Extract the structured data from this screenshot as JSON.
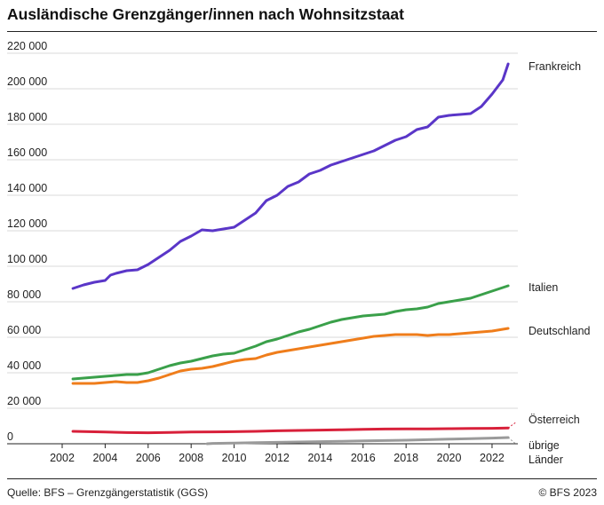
{
  "header": {
    "title": "Ausländische Grenzgänger/innen nach Wohnsitzstaat"
  },
  "footer": {
    "source": "Quelle: BFS – Grenzgängerstatistik (GGS)",
    "copyright": "© BFS 2023"
  },
  "colors": {
    "Frankreich": "#5a36c8",
    "Italien": "#3aa04a",
    "Deutschland": "#ef7d1b",
    "Österreich": "#d8203a",
    "übrige Länder": "#9a9a9a",
    "gridline": "#d9d9d9",
    "axis": "#222222"
  },
  "chart_data": {
    "type": "line",
    "title": "Ausländische Grenzgänger/innen nach Wohnsitzstaat",
    "xlabel": "",
    "ylabel": "",
    "xlim": [
      2002,
      2023.2
    ],
    "ylim": [
      0,
      220000
    ],
    "grid": true,
    "y_ticks": [
      0,
      20000,
      40000,
      60000,
      80000,
      100000,
      120000,
      140000,
      160000,
      180000,
      200000,
      220000
    ],
    "y_tick_labels": [
      "0",
      "20 000",
      "40 000",
      "60 000",
      "80 000",
      "100 000",
      "120 000",
      "140 000",
      "160 000",
      "180 000",
      "200 000",
      "220 000"
    ],
    "x_ticks": [
      2002,
      2004,
      2006,
      2008,
      2010,
      2012,
      2014,
      2016,
      2018,
      2020,
      2022
    ],
    "x_tick_labels": [
      "2002",
      "2004",
      "2006",
      "2008",
      "2010",
      "2012",
      "2014",
      "2016",
      "2018",
      "2020",
      "2022"
    ],
    "legend": "end-of-line labels",
    "series": [
      {
        "name": "Frankreich",
        "x": [
          2002.5,
          2003.0,
          2003.5,
          2004.0,
          2004.25,
          2004.5,
          2005.0,
          2005.5,
          2006.0,
          2006.5,
          2007.0,
          2007.5,
          2008.0,
          2008.5,
          2009.0,
          2009.5,
          2010.0,
          2010.5,
          2011.0,
          2011.5,
          2012.0,
          2012.5,
          2013.0,
          2013.5,
          2014.0,
          2014.5,
          2015.0,
          2015.5,
          2016.0,
          2016.5,
          2017.0,
          2017.5,
          2018.0,
          2018.5,
          2019.0,
          2019.5,
          2020.0,
          2020.5,
          2021.0,
          2021.5,
          2022.0,
          2022.5,
          2022.75
        ],
        "values": [
          87500,
          89500,
          91000,
          92000,
          95000,
          96000,
          97500,
          98000,
          101000,
          105000,
          109000,
          114000,
          117000,
          120500,
          120000,
          121000,
          122000,
          126000,
          130000,
          137000,
          140000,
          145000,
          147500,
          152000,
          154000,
          157000,
          159000,
          161000,
          163000,
          165000,
          168000,
          171000,
          173000,
          177000,
          178500,
          184000,
          185000,
          185500,
          186000,
          190000,
          197000,
          205000,
          214000
        ]
      },
      {
        "name": "Italien",
        "x": [
          2002.5,
          2003.0,
          2003.5,
          2004.0,
          2004.5,
          2005.0,
          2005.5,
          2006.0,
          2006.5,
          2007.0,
          2007.5,
          2008.0,
          2008.5,
          2009.0,
          2009.5,
          2010.0,
          2010.5,
          2011.0,
          2011.5,
          2012.0,
          2012.5,
          2013.0,
          2013.5,
          2014.0,
          2014.5,
          2015.0,
          2015.5,
          2016.0,
          2016.5,
          2017.0,
          2017.5,
          2018.0,
          2018.5,
          2019.0,
          2019.5,
          2020.0,
          2020.5,
          2021.0,
          2021.5,
          2022.0,
          2022.5,
          2022.75
        ],
        "values": [
          36500,
          37000,
          37500,
          38000,
          38500,
          39000,
          39000,
          40000,
          42000,
          44000,
          45500,
          46500,
          48000,
          49500,
          50500,
          51000,
          53000,
          55000,
          57500,
          59000,
          61000,
          63000,
          64500,
          66500,
          68500,
          70000,
          71000,
          72000,
          72500,
          73000,
          74500,
          75500,
          76000,
          77000,
          79000,
          80000,
          81000,
          82000,
          84000,
          86000,
          88000,
          89000
        ]
      },
      {
        "name": "Deutschland",
        "x": [
          2002.5,
          2003.0,
          2003.5,
          2004.0,
          2004.5,
          2005.0,
          2005.5,
          2006.0,
          2006.5,
          2007.0,
          2007.5,
          2008.0,
          2008.5,
          2009.0,
          2009.5,
          2010.0,
          2010.5,
          2011.0,
          2011.5,
          2012.0,
          2012.5,
          2013.0,
          2013.5,
          2014.0,
          2014.5,
          2015.0,
          2015.5,
          2016.0,
          2016.5,
          2017.0,
          2017.5,
          2018.0,
          2018.5,
          2019.0,
          2019.5,
          2020.0,
          2020.5,
          2021.0,
          2021.5,
          2022.0,
          2022.5,
          2022.75
        ],
        "values": [
          34000,
          34000,
          34000,
          34500,
          35000,
          34500,
          34500,
          35500,
          37000,
          39000,
          41000,
          42000,
          42500,
          43500,
          45000,
          46500,
          47500,
          48000,
          50000,
          51500,
          52500,
          53500,
          54500,
          55500,
          56500,
          57500,
          58500,
          59500,
          60500,
          61000,
          61500,
          61500,
          61500,
          61000,
          61500,
          61500,
          62000,
          62500,
          63000,
          63500,
          64500,
          65000
        ]
      },
      {
        "name": "Österreich",
        "x": [
          2002.5,
          2003.0,
          2004.0,
          2005.0,
          2006.0,
          2007.0,
          2008.0,
          2009.0,
          2010.0,
          2011.0,
          2012.0,
          2013.0,
          2014.0,
          2015.0,
          2016.0,
          2017.0,
          2018.0,
          2019.0,
          2020.0,
          2021.0,
          2022.0,
          2022.75
        ],
        "values": [
          7000,
          6900,
          6600,
          6300,
          6200,
          6400,
          6600,
          6700,
          6800,
          7000,
          7300,
          7500,
          7700,
          7900,
          8100,
          8300,
          8400,
          8400,
          8500,
          8600,
          8700,
          8900
        ]
      },
      {
        "name": "übrige Länder",
        "x": [
          2008.75,
          2009.0,
          2010.0,
          2011.0,
          2012.0,
          2013.0,
          2014.0,
          2015.0,
          2016.0,
          2017.0,
          2018.0,
          2019.0,
          2020.0,
          2021.0,
          2022.0,
          2022.75
        ],
        "values": [
          0,
          200,
          400,
          600,
          800,
          1000,
          1200,
          1400,
          1600,
          1800,
          2000,
          2300,
          2600,
          2900,
          3200,
          3500
        ]
      }
    ],
    "annotations": [
      {
        "series": "Österreich",
        "note": "dashed connector to label",
        "x_end": 2023.1,
        "y_end": 12000
      },
      {
        "series": "übrige Länder",
        "note": "dashed connector to label",
        "x_end": 2023.1,
        "y_end": 0
      }
    ]
  }
}
